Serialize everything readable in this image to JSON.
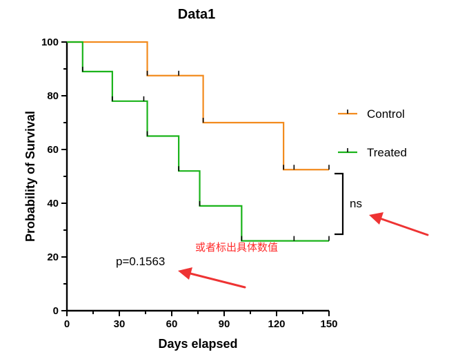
{
  "chart_data": {
    "type": "line",
    "title": "Data1",
    "xlabel": "Days elapsed",
    "ylabel": "Probability of Survival",
    "xlim": [
      0,
      150
    ],
    "ylim": [
      0,
      100
    ],
    "x_ticks": [
      0,
      30,
      60,
      90,
      120,
      150
    ],
    "y_ticks": [
      0,
      20,
      40,
      60,
      80,
      100
    ],
    "grid": false,
    "legend_position": "right",
    "series": [
      {
        "name": "Control",
        "color": "#f28a1c",
        "steps": [
          [
            0,
            100
          ],
          [
            46,
            87.5
          ],
          [
            78,
            70
          ],
          [
            124,
            52.5
          ],
          [
            150,
            52.5
          ]
        ],
        "censored": [
          [
            46,
            87.5
          ],
          [
            64,
            87.5
          ],
          [
            78,
            70
          ],
          [
            124,
            52.5
          ],
          [
            130,
            52.5
          ],
          [
            150,
            52.5
          ]
        ]
      },
      {
        "name": "Treated",
        "color": "#19b319",
        "steps": [
          [
            0,
            100
          ],
          [
            9,
            89
          ],
          [
            26,
            78
          ],
          [
            46,
            65
          ],
          [
            64,
            52
          ],
          [
            76,
            39
          ],
          [
            100,
            26
          ],
          [
            150,
            26
          ]
        ],
        "censored": [
          [
            9,
            89
          ],
          [
            26,
            78
          ],
          [
            44,
            78
          ],
          [
            46,
            65
          ],
          [
            64,
            52
          ],
          [
            76,
            39
          ],
          [
            100,
            26
          ],
          [
            130,
            26
          ],
          [
            150,
            26
          ]
        ]
      }
    ],
    "annotations": {
      "p_value": "p=0.1563",
      "significance": "ns",
      "red_note": "或者标出具体数值"
    }
  }
}
